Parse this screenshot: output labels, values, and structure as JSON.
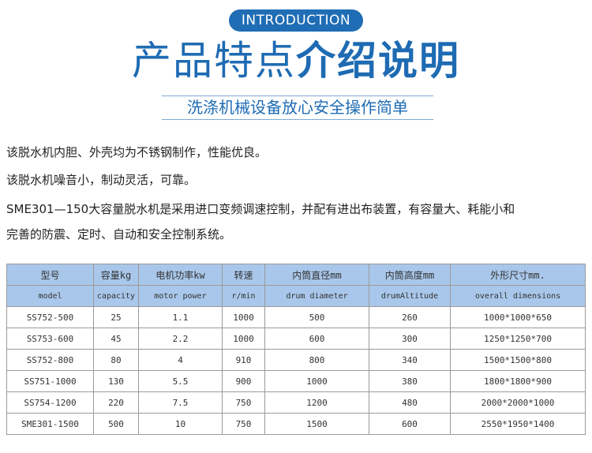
{
  "header": {
    "badge": "INTRODUCTION",
    "title_light": "产品特点",
    "title_bold": "介绍说明",
    "subtitle": "洗涤机械设备放心安全操作简单"
  },
  "paragraphs": [
    "该脱水机内胆、外壳均为不锈钢制作，性能优良。",
    "该脱水机噪音小，制动灵活，可靠。",
    "SME301—150大容量脱水机是采用进口变频调速控制，并配有进出布装置，有容量大、耗能小和",
    "完善的防震、定时、自动和安全控制系统。"
  ],
  "table": {
    "header_cn": [
      "型号",
      "容量kg",
      "电机功率kw",
      "转速",
      "内筒直径mm",
      "内筒高度mm",
      "外形尺寸mm."
    ],
    "header_en": [
      "model",
      "capacity",
      "motor power",
      "r/min",
      "drum diameter",
      "drumAltitude",
      "overall dimensions"
    ],
    "rows": [
      [
        "SS752-500",
        "25",
        "1.1",
        "1000",
        "500",
        "260",
        "1000*1000*650"
      ],
      [
        "SS753-600",
        "45",
        "2.2",
        "1000",
        "600",
        "300",
        "1250*1250*700"
      ],
      [
        "SS752-800",
        "80",
        "4",
        "910",
        "800",
        "340",
        "1500*1500*800"
      ],
      [
        "SS751-1000",
        "130",
        "5.5",
        "900",
        "1000",
        "380",
        "1800*1800*900"
      ],
      [
        "SS754-1200",
        "220",
        "7.5",
        "750",
        "1200",
        "480",
        "2000*2000*1000"
      ],
      [
        "SME301-1500",
        "500",
        "10",
        "750",
        "1500",
        "600",
        "2550*1950*1400"
      ]
    ]
  },
  "colors": {
    "accent": "#1e6bb3",
    "table_header": "#a9c7ea"
  }
}
